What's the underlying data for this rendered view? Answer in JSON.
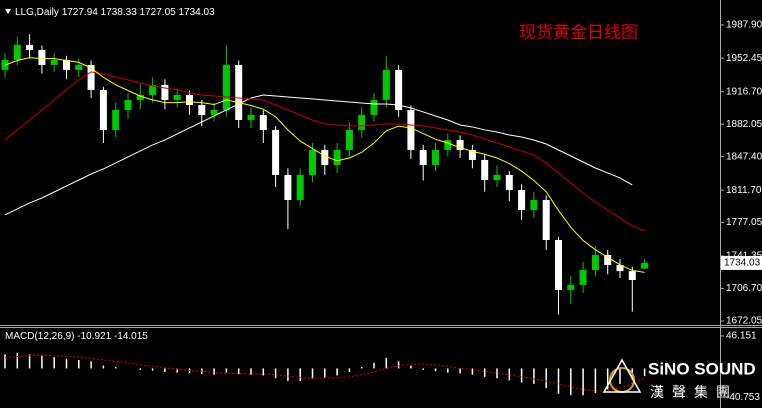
{
  "chart_data": [
    {
      "type": "candlestick",
      "symbol": "LLG,Daily",
      "title": "现货黄金日线图",
      "up_color": "#00c800",
      "down_color": "#ffffff",
      "open": [
        1940,
        1950.6,
        1966.6,
        1961.2,
        1945.2,
        1950.6,
        1939.9,
        1945.2,
        1918.6,
        1875.9,
        1897.2,
        1907.9,
        1913.2,
        1923.9,
        1907.9,
        1913.2,
        1902.5,
        1891.9,
        1897.2,
        1945.2,
        1886.5,
        1891.9,
        1875.9,
        1827.9,
        1801.2,
        1827.9,
        1854.5,
        1838.5,
        1854.5,
        1875.9,
        1891.9,
        1907.9,
        1939.9,
        1897.2,
        1854.5,
        1838.5,
        1854.5,
        1865.2,
        1854.5,
        1843.9,
        1822.5,
        1827.9,
        1811.9,
        1790.5,
        1801.2,
        1758.5,
        1705.2,
        1710.5,
        1726.5,
        1742.5,
        1731.8,
        1725.3,
        1727.94
      ],
      "high": [
        1958,
        1975,
        1978,
        1966,
        1958,
        1955,
        1952,
        1950,
        1922,
        1905,
        1915,
        1925,
        1932,
        1930,
        1920,
        1918,
        1908,
        1905,
        1966,
        1950,
        1900,
        1897,
        1880,
        1835,
        1835,
        1862,
        1860,
        1862,
        1884,
        1900,
        1915,
        1955,
        1945,
        1902,
        1860,
        1862,
        1872,
        1870,
        1860,
        1850,
        1838,
        1832,
        1818,
        1810,
        1806,
        1762,
        1720,
        1735,
        1752,
        1748,
        1738,
        1730,
        1738.33
      ],
      "low": [
        1932,
        1945,
        1952,
        1936,
        1938,
        1930,
        1932,
        1910,
        1862,
        1868,
        1888,
        1898,
        1905,
        1898,
        1900,
        1892,
        1880,
        1885,
        1890,
        1878,
        1878,
        1862,
        1815,
        1770,
        1795,
        1820,
        1828,
        1830,
        1848,
        1868,
        1885,
        1900,
        1890,
        1845,
        1822,
        1832,
        1848,
        1846,
        1835,
        1810,
        1815,
        1800,
        1780,
        1782,
        1748,
        1679,
        1690,
        1702,
        1720,
        1722,
        1718,
        1682,
        1727.05
      ],
      "close": [
        1950.6,
        1966.6,
        1961.2,
        1945.2,
        1950.6,
        1939.9,
        1945.2,
        1918.6,
        1875.9,
        1897.2,
        1907.9,
        1913.2,
        1923.9,
        1907.9,
        1913.2,
        1902.5,
        1891.9,
        1897.2,
        1945.2,
        1886.5,
        1891.9,
        1875.9,
        1827.9,
        1801.2,
        1827.9,
        1854.5,
        1838.5,
        1854.5,
        1875.9,
        1891.9,
        1907.9,
        1939.9,
        1897.2,
        1854.5,
        1838.5,
        1854.5,
        1865.2,
        1854.5,
        1843.9,
        1822.5,
        1827.9,
        1811.9,
        1790.5,
        1801.2,
        1758.5,
        1705.2,
        1710.5,
        1726.5,
        1742.5,
        1731.8,
        1725.3,
        1715.8,
        1734.03
      ],
      "series": [
        {
          "color": "#ffffff",
          "values": [
            1785.2,
            1791.6,
            1798.0,
            1803.3,
            1809.7,
            1816.1,
            1822.5,
            1828.9,
            1834.3,
            1840.7,
            1847.1,
            1853.5,
            1859.9,
            1865.2,
            1871.6,
            1878.0,
            1884.4,
            1890.8,
            1897.2,
            1903.6,
            1910.0,
            1913.2,
            1912.1,
            1911.1,
            1910.0,
            1909.0,
            1907.9,
            1906.8,
            1905.7,
            1904.7,
            1903.6,
            1903.6,
            1902.5,
            1899.3,
            1895.1,
            1890.8,
            1886.5,
            1881.2,
            1879.1,
            1875.9,
            1873.7,
            1870.5,
            1868.4,
            1865.2,
            1860.9,
            1854.5,
            1848.1,
            1841.7,
            1835.3,
            1830.0,
            1824.7,
            1817.2,
            null
          ]
        },
        {
          "color": "#c80000",
          "values": [
            1865.2,
            1875.9,
            1886.5,
            1897.2,
            1907.9,
            1918.6,
            1929.2,
            1937.8,
            1935.6,
            1932.4,
            1929.2,
            1926.0,
            1922.8,
            1920.7,
            1918.6,
            1915.3,
            1913.2,
            1912.1,
            1911.1,
            1910.0,
            1909.0,
            1907.9,
            1902.5,
            1897.2,
            1891.9,
            1886.5,
            1882.3,
            1881.2,
            1880.1,
            1880.1,
            1881.2,
            1882.3,
            1882.3,
            1881.2,
            1880.1,
            1878.0,
            1875.9,
            1873.7,
            1870.5,
            1866.2,
            1862.0,
            1857.7,
            1853.5,
            1849.2,
            1840.7,
            1830.0,
            1819.3,
            1808.6,
            1799.0,
            1790.5,
            1782.0,
            1773.4,
            1768.1
          ]
        },
        {
          "color": "#ffff00",
          "values": [
            1945,
            1950,
            1953,
            1952,
            1952,
            1950,
            1948,
            1942,
            1932,
            1924,
            1918,
            1912,
            1908,
            1905,
            1905,
            1906,
            1905,
            1903,
            1908,
            1905,
            1902,
            1898,
            1890,
            1876,
            1864,
            1856,
            1848,
            1843,
            1846,
            1852,
            1862,
            1875,
            1880,
            1878,
            1872,
            1866,
            1862,
            1857,
            1853,
            1850,
            1846,
            1840,
            1832,
            1822,
            1810,
            1790,
            1772,
            1758,
            1748,
            1740,
            1732,
            1726,
            1724
          ]
        }
      ],
      "ylim": [
        1667.8,
        2009.2
      ],
      "yticks": [
        {
          "value": 1987.9,
          "label": "1987.90"
        },
        1952.45,
        {
          "value": 1916.7,
          "label": "1916.70"
        },
        1882.05,
        {
          "value": 1847.4,
          "label": "1847.40"
        },
        {
          "value": 1811.7,
          "label": "1811.70"
        },
        1777.05,
        1741.35,
        {
          "value": 1706.7,
          "label": "1706.70"
        },
        1672.05
      ]
    },
    {
      "type": "macd",
      "label": "MACD(12,26,9)",
      "macd": {
        "color": "#ffffff",
        "values": [
          20,
          22,
          20,
          18,
          16,
          14,
          12,
          10,
          4,
          2,
          0,
          -2,
          -3,
          -5,
          -6,
          -7,
          -8,
          -9,
          -6,
          -8,
          -9,
          -10,
          -14,
          -18,
          -18,
          -15,
          -13,
          -10,
          -5,
          2,
          8,
          15,
          10,
          4,
          -2,
          -4,
          -6,
          -7,
          -9,
          -12,
          -14,
          -17,
          -20,
          -22,
          -28,
          -36,
          -38,
          -38,
          -35,
          -30,
          -22,
          -16,
          -10.921
        ]
      },
      "signal": {
        "color": "#e00000",
        "values": [
          15,
          17,
          18,
          19,
          18,
          17,
          16,
          14,
          12,
          10,
          8,
          5,
          3,
          1,
          -1,
          -3,
          -4,
          -6,
          -7,
          -7,
          -8,
          -8,
          -9,
          -11,
          -13,
          -14,
          -14,
          -13,
          -12,
          -9,
          -5,
          0,
          4,
          6,
          6,
          5,
          3,
          0,
          -2,
          -4,
          -7,
          -9,
          -12,
          -15,
          -18,
          -22,
          -26,
          -30,
          -32,
          -32,
          -28,
          -21,
          -14.015
        ]
      },
      "ylim": [
        -56.2,
        57.4
      ],
      "yticks": [
        46.151,
        -40.753
      ]
    }
  ],
  "watermark": {
    "brand": "SiNO SOUND",
    "brand_cn": "漢聲集團"
  }
}
